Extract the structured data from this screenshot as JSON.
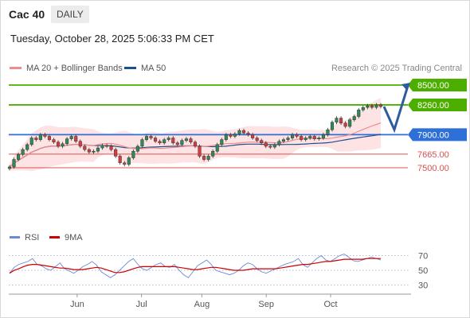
{
  "header": {
    "instrument": "Cac 40",
    "period": "DAILY",
    "timestamp": "Tuesday, October 28, 2025 5:06:33 PM CET",
    "credit": "Research © 2025 Trading Central"
  },
  "colors": {
    "resistance": "#4caf00",
    "pivot": "#2e6fd8",
    "support": "#d9534f",
    "bollinger_fill": "#fde3e3",
    "ma20": "#f08c8c",
    "ma50": "#1f4e8c",
    "candle_up": "#2e8b57",
    "candle_down": "#d93c3c",
    "rsi": "#6c8ad6",
    "rsi_ma": "#cc0000",
    "arrow": "#2d5b9e"
  },
  "chart_data": [
    {
      "type": "candlestick",
      "x_axis_labels": [
        "Jun",
        "Jul",
        "Aug",
        "Sep",
        "Oct"
      ],
      "legend": [
        {
          "name": "MA 20 + Bollinger Bands",
          "color": "#f08c8c"
        },
        {
          "name": "MA 50",
          "color": "#1f4e8c"
        }
      ],
      "levels": [
        {
          "value": 8500,
          "label": "8500.00",
          "kind": "resistance"
        },
        {
          "value": 8260,
          "label": "8260.00",
          "kind": "resistance"
        },
        {
          "value": 7900,
          "label": "7900.00",
          "kind": "pivot"
        },
        {
          "value": 7665,
          "label": "7665.00",
          "kind": "support"
        },
        {
          "value": 7500,
          "label": "7500.00",
          "kind": "support"
        }
      ],
      "close_approx": [
        7510,
        7600,
        7660,
        7720,
        7780,
        7860,
        7840,
        7900,
        7880,
        7840,
        7810,
        7760,
        7790,
        7850,
        7880,
        7820,
        7760,
        7720,
        7690,
        7700,
        7740,
        7770,
        7760,
        7720,
        7640,
        7560,
        7540,
        7620,
        7700,
        7760,
        7840,
        7880,
        7860,
        7820,
        7800,
        7840,
        7860,
        7800,
        7780,
        7830,
        7850,
        7810,
        7760,
        7640,
        7600,
        7640,
        7700,
        7780,
        7840,
        7900,
        7880,
        7910,
        7950,
        7920,
        7900,
        7860,
        7830,
        7800,
        7760,
        7750,
        7780,
        7820,
        7840,
        7860,
        7900,
        7880,
        7840,
        7860,
        7880,
        7850,
        7860,
        7900,
        7960,
        8050,
        8100,
        8040,
        8000,
        8080,
        8120,
        8200,
        8230,
        8250,
        8230,
        8260,
        8240
      ]
    },
    {
      "type": "line",
      "legend": [
        {
          "name": "RSI",
          "color": "#6c8ad6"
        },
        {
          "name": "9MA",
          "color": "#cc0000"
        }
      ],
      "y_ticks": [
        70,
        50,
        30
      ],
      "ylim": [
        20,
        80
      ],
      "series": [
        {
          "name": "RSI",
          "values": [
            46,
            54,
            58,
            60,
            62,
            66,
            58,
            56,
            52,
            50,
            55,
            60,
            52,
            49,
            46,
            50,
            55,
            58,
            62,
            57,
            48,
            44,
            40,
            44,
            50,
            56,
            62,
            66,
            58,
            52,
            50,
            54,
            58,
            60,
            55,
            54,
            58,
            50,
            44,
            40,
            48,
            56,
            60,
            64,
            58,
            50,
            48,
            46,
            44,
            46,
            50,
            56,
            60,
            58,
            52,
            48,
            46,
            49,
            52,
            55,
            58,
            60,
            62,
            66,
            58,
            54,
            60,
            66,
            70,
            64,
            62,
            66,
            70,
            72,
            68,
            63,
            62,
            64,
            66,
            68,
            66,
            64
          ]
        },
        {
          "name": "9MA",
          "values": [
            46,
            50,
            52,
            55,
            57,
            58,
            58,
            57,
            56,
            55,
            54,
            53,
            53,
            52,
            51,
            51,
            51,
            52,
            53,
            54,
            53,
            51,
            49,
            47,
            47,
            48,
            50,
            52,
            54,
            55,
            55,
            55,
            55,
            55,
            55,
            55,
            55,
            54,
            53,
            52,
            51,
            51,
            52,
            53,
            54,
            54,
            53,
            52,
            51,
            50,
            50,
            50,
            51,
            52,
            52,
            52,
            52,
            52,
            52,
            53,
            54,
            55,
            56,
            57,
            58,
            58,
            59,
            60,
            61,
            62,
            62,
            63,
            64,
            65,
            65,
            65,
            65,
            65,
            66,
            66,
            66,
            66
          ]
        }
      ]
    }
  ]
}
